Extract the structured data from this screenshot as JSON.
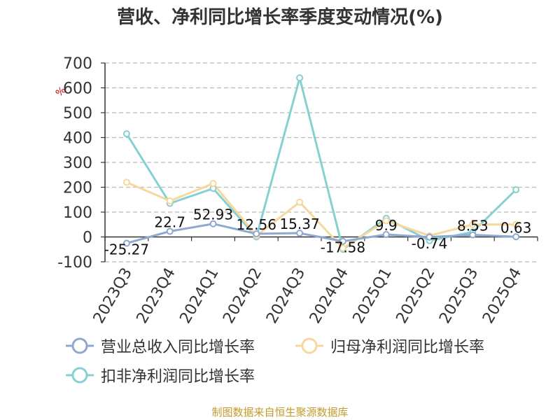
{
  "title": "营收、净利同比增长率季度变动情况(%)",
  "footer": "制图数据来自恒生聚源数据库",
  "chart_data": {
    "type": "line",
    "title": "营收、净利同比增长率季度变动情况(%)",
    "ylabel": "%",
    "ylim": [
      -100,
      700
    ],
    "yticks": [
      -100,
      0,
      100,
      200,
      300,
      400,
      500,
      600,
      700
    ],
    "grid": true,
    "legend_position": "bottom-left",
    "categories": [
      "2023Q3",
      "2023Q4",
      "2024Q1",
      "2024Q2",
      "2024Q3",
      "2024Q4",
      "2025Q1",
      "2025Q2",
      "2025Q3",
      "2025Q4"
    ],
    "series": [
      {
        "name": "营业总收入同比增长率",
        "color": "#8fa8d0",
        "values": [
          -25.27,
          22.7,
          52.93,
          12.56,
          15.37,
          -17.58,
          9.9,
          -0.74,
          8.53,
          0.63
        ],
        "labels": [
          "-25.27",
          "22.7",
          "52.93",
          "12.56",
          "15.37",
          "-17.58",
          "9.9",
          "-0.74",
          "8.53",
          "0.63"
        ]
      },
      {
        "name": "归母净利润同比增长率",
        "color": "#f7d79c",
        "values": [
          220,
          145,
          215,
          5,
          140,
          -45,
          65,
          5,
          50,
          50
        ]
      },
      {
        "name": "扣非净利润同比增长率",
        "color": "#86d0d3",
        "values": [
          415,
          135,
          195,
          0,
          640,
          -50,
          75,
          -15,
          20,
          190
        ]
      }
    ]
  }
}
